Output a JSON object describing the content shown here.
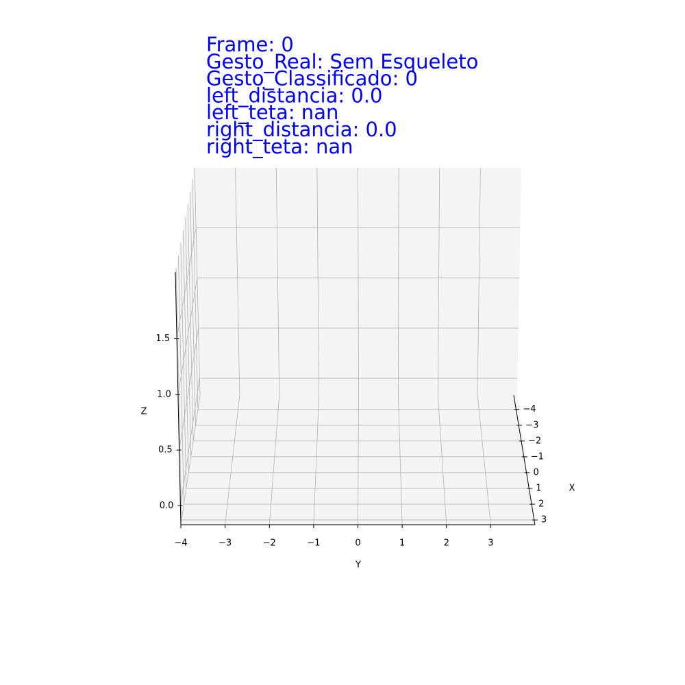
{
  "chart_data": {
    "type": "3d",
    "annotations": [
      "Frame: 0",
      "Gesto_Real: Sem Esqueleto",
      "Gesto_Classificado: 0",
      "left_distancia: 0.0",
      "left_teta: nan",
      "right_distancia: 0.0",
      "right_teta: nan"
    ],
    "xlabel": "X",
    "ylabel": "Y",
    "zlabel": "Z",
    "xlim": [
      -4.9,
      3.3
    ],
    "ylim": [
      -4,
      4
    ],
    "zlim": [
      -0.17,
      2.1
    ],
    "xticks": [
      {
        "value": -4,
        "label": "−4"
      },
      {
        "value": -3,
        "label": "−3"
      },
      {
        "value": -2,
        "label": "−2"
      },
      {
        "value": -1,
        "label": "−1"
      },
      0,
      1,
      2,
      3
    ],
    "yticks": [
      {
        "value": -4,
        "label": "−4"
      },
      {
        "value": -3,
        "label": "−3"
      },
      {
        "value": -2,
        "label": "−2"
      },
      {
        "value": -1,
        "label": "−1"
      },
      0,
      1,
      2,
      3
    ],
    "zticks": [
      {
        "value": 0,
        "label": "0.0"
      },
      {
        "value": 0.5,
        "label": "0.5"
      },
      {
        "value": 1,
        "label": "1.0"
      },
      {
        "value": 1.5,
        "label": "1.5"
      }
    ],
    "grid": true
  }
}
